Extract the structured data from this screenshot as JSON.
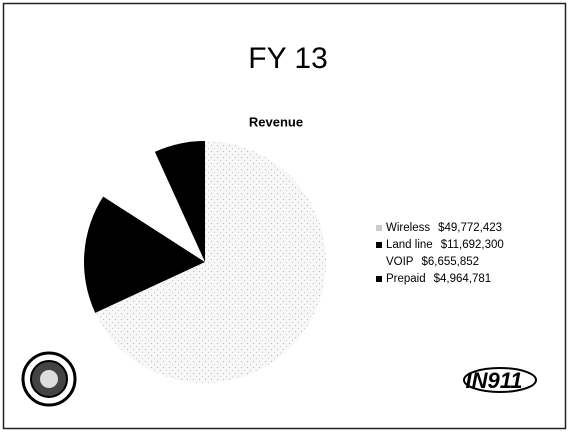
{
  "chart_data": {
    "type": "pie",
    "title": "FY 13",
    "subtitle": "Revenue",
    "categories": [
      "Wireless",
      "Land line",
      "VOIP",
      "Prepaid"
    ],
    "values": [
      49772423,
      11692300,
      6655852,
      4964781
    ],
    "value_labels": [
      "$49,772,423",
      "$11,692,300",
      "$6,655,852",
      "$4,964,781"
    ],
    "colors": [
      "#efefef",
      "#000000",
      "#ffffff",
      "#000000"
    ],
    "legend": "right",
    "logo_text": "IN911"
  }
}
